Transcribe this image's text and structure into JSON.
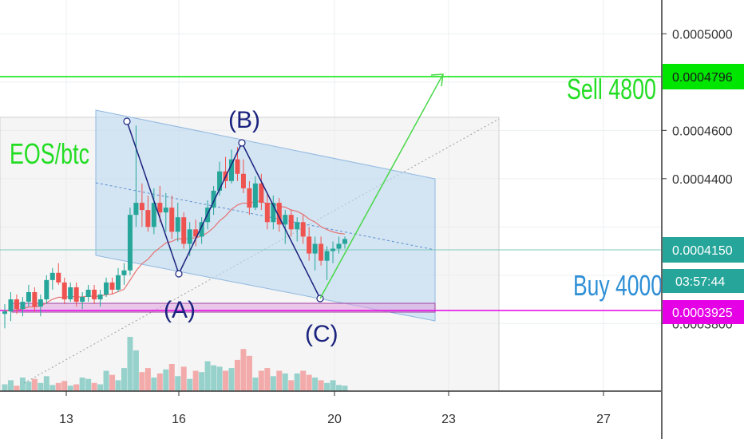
{
  "chart_data": {
    "type": "candlestick",
    "title": "",
    "annotations": {
      "symbol_text": "EOS/btc",
      "sell_text": "Sell 4800",
      "buy_text": "Buy 4000",
      "point_a": "(A)",
      "point_b": "(B)",
      "point_c": "(C)"
    },
    "price_axis": {
      "ticks": [
        "0.0005000",
        "0.0004600",
        "0.0004400",
        "0.0003800"
      ],
      "ylim": [
        0.000352,
        0.000514
      ]
    },
    "price_labels": {
      "sell_level": "0.0004796",
      "current": "0.0004150",
      "countdown": "03:57:44",
      "buy_level": "0.0003925"
    },
    "time_axis": {
      "ticks": [
        "13",
        "16",
        "20",
        "23",
        "27"
      ]
    },
    "colors": {
      "up": "#26a69a",
      "down": "#ef5350",
      "sell_line": "#00e600",
      "buy_line": "#e600e6",
      "channel_fill": "#bcd8f0",
      "wave": "#1a237e",
      "buy_text": "#2e8fd6",
      "ema": "#e57373"
    },
    "candles": [
      [
        0.000384,
        0.000388,
        0.000378,
        0.000385
      ],
      [
        0.000385,
        0.000393,
        0.000381,
        0.00039
      ],
      [
        0.00039,
        0.000392,
        0.000384,
        0.000386
      ],
      [
        0.000386,
        0.000391,
        0.000383,
        0.000389
      ],
      [
        0.000389,
        0.000396,
        0.000387,
        0.000393
      ],
      [
        0.000393,
        0.000395,
        0.000385,
        0.000387
      ],
      [
        0.000387,
        0.000392,
        0.000383,
        0.00039
      ],
      [
        0.00039,
        0.0004,
        0.000388,
        0.000398
      ],
      [
        0.000398,
        0.000403,
        0.000394,
        0.000401
      ],
      [
        0.000401,
        0.000405,
        0.000396,
        0.000397
      ],
      [
        0.000397,
        0.000399,
        0.000388,
        0.00039
      ],
      [
        0.00039,
        0.000397,
        0.000389,
        0.000395
      ],
      [
        0.000395,
        0.000397,
        0.000387,
        0.000389
      ],
      [
        0.000389,
        0.000393,
        0.000386,
        0.000391
      ],
      [
        0.000391,
        0.000396,
        0.000389,
        0.000394
      ],
      [
        0.000394,
        0.000396,
        0.000388,
        0.00039
      ],
      [
        0.00039,
        0.000394,
        0.000387,
        0.000392
      ],
      [
        0.000392,
        0.000399,
        0.000391,
        0.000397
      ],
      [
        0.000397,
        0.000399,
        0.000392,
        0.000394
      ],
      [
        0.000394,
        0.000403,
        0.000393,
        0.0004
      ],
      [
        0.0004,
        0.000405,
        0.000396,
        0.000402
      ],
      [
        0.000402,
        0.000428,
        0.0004,
        0.000425
      ],
      [
        0.000425,
        0.000462,
        0.00042,
        0.00043
      ],
      [
        0.00043,
        0.000438,
        0.00042,
        0.000427
      ],
      [
        0.000427,
        0.000433,
        0.000418,
        0.00042
      ],
      [
        0.00042,
        0.000436,
        0.000417,
        0.00043
      ],
      [
        0.00043,
        0.000437,
        0.000422,
        0.000426
      ],
      [
        0.000426,
        0.000434,
        0.000418,
        0.000428
      ],
      [
        0.000428,
        0.000433,
        0.000415,
        0.000418
      ],
      [
        0.000418,
        0.00043,
        0.000414,
        0.000424
      ],
      [
        0.000424,
        0.000426,
        0.000411,
        0.000413
      ],
      [
        0.000413,
        0.000422,
        0.000408,
        0.000419
      ],
      [
        0.000419,
        0.000423,
        0.000412,
        0.000416
      ],
      [
        0.000416,
        0.000424,
        0.000413,
        0.000422
      ],
      [
        0.000422,
        0.000431,
        0.000419,
        0.000428
      ],
      [
        0.000428,
        0.000437,
        0.000425,
        0.000435
      ],
      [
        0.000435,
        0.000447,
        0.000433,
        0.000443
      ],
      [
        0.000443,
        0.000449,
        0.000436,
        0.000439
      ],
      [
        0.000439,
        0.000452,
        0.000438,
        0.000448
      ],
      [
        0.000448,
        0.000453,
        0.000439,
        0.000442
      ],
      [
        0.000442,
        0.000448,
        0.000434,
        0.000436
      ],
      [
        0.000436,
        0.000439,
        0.000425,
        0.000428
      ],
      [
        0.000428,
        0.000441,
        0.000427,
        0.000438
      ],
      [
        0.000438,
        0.000442,
        0.000427,
        0.00043
      ],
      [
        0.00043,
        0.000434,
        0.000419,
        0.000422
      ],
      [
        0.000422,
        0.000433,
        0.000419,
        0.00043
      ],
      [
        0.00043,
        0.000432,
        0.000418,
        0.000421
      ],
      [
        0.000421,
        0.000427,
        0.000413,
        0.000425
      ],
      [
        0.000425,
        0.000427,
        0.000416,
        0.000419
      ],
      [
        0.000419,
        0.000424,
        0.000414,
        0.000422
      ],
      [
        0.000422,
        0.000425,
        0.000413,
        0.000416
      ],
      [
        0.000416,
        0.00042,
        0.000406,
        0.000409
      ],
      [
        0.000409,
        0.000416,
        0.000402,
        0.000413
      ],
      [
        0.000413,
        0.000416,
        0.000404,
        0.000406
      ],
      [
        0.000406,
        0.000412,
        0.000398,
        0.00041
      ],
      [
        0.00041,
        0.000414,
        0.000405,
        0.000411
      ],
      [
        0.000411,
        0.000416,
        0.000409,
        0.000413
      ],
      [
        0.000413,
        0.000416,
        0.000411,
        0.000415
      ]
    ],
    "volumes": [
      10,
      16,
      8,
      20,
      14,
      18,
      12,
      22,
      9,
      12,
      15,
      8,
      10,
      20,
      18,
      12,
      10,
      30,
      24,
      16,
      34,
      80,
      60,
      28,
      34,
      20,
      26,
      32,
      40,
      22,
      36,
      18,
      30,
      28,
      44,
      38,
      36,
      30,
      34,
      46,
      62,
      52,
      20,
      30,
      34,
      22,
      30,
      26,
      16,
      26,
      30,
      24,
      20,
      16,
      12,
      16,
      9,
      8
    ]
  }
}
